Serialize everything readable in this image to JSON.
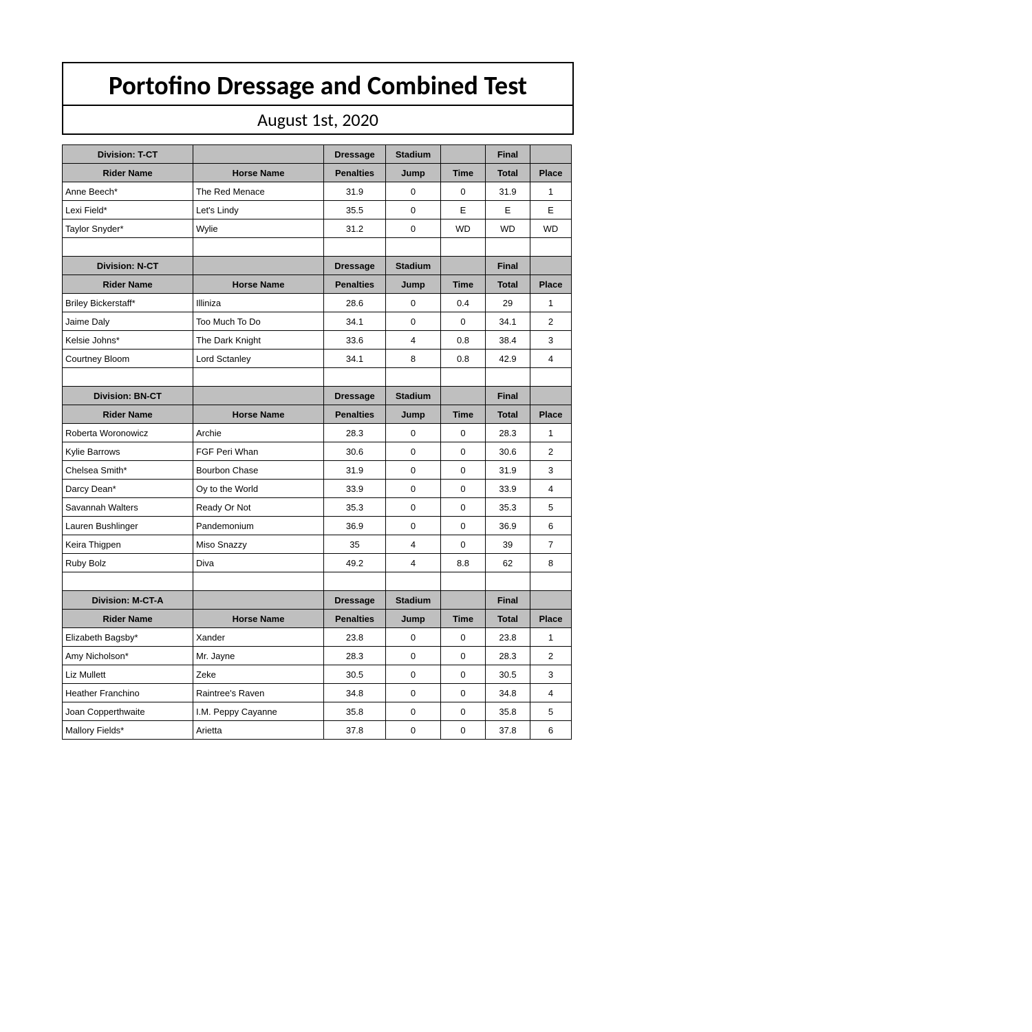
{
  "title": {
    "main": "Portofino Dressage and Combined Test",
    "date": "August 1st, 2020"
  },
  "columns": {
    "rider": "Rider Name",
    "horse": "Horse Name",
    "dressage_top": "Dressage",
    "dressage": "Penalties",
    "stadium_top": "Stadium",
    "jump": "Jump",
    "time": "Time",
    "final_top": "Final",
    "total": "Total",
    "place": "Place"
  },
  "divisions": [
    {
      "name": "Division: T-CT",
      "rows": [
        {
          "rider": "Anne Beech*",
          "horse": "The Red Menace",
          "dressage": "31.9",
          "jump": "0",
          "time": "0",
          "total": "31.9",
          "place": "1"
        },
        {
          "rider": "Lexi Field*",
          "horse": "Let's Lindy",
          "dressage": "35.5",
          "jump": "0",
          "time": "E",
          "total": "E",
          "place": "E"
        },
        {
          "rider": "Taylor Snyder*",
          "horse": "Wylie",
          "dressage": "31.2",
          "jump": "0",
          "time": "WD",
          "total": "WD",
          "place": "WD"
        }
      ]
    },
    {
      "name": "Division: N-CT",
      "rows": [
        {
          "rider": "Briley Bickerstaff*",
          "horse": "Illiniza",
          "dressage": "28.6",
          "jump": "0",
          "time": "0.4",
          "total": "29",
          "place": "1"
        },
        {
          "rider": "Jaime Daly",
          "horse": "Too Much To Do",
          "dressage": "34.1",
          "jump": "0",
          "time": "0",
          "total": "34.1",
          "place": "2"
        },
        {
          "rider": "Kelsie Johns*",
          "horse": "The Dark Knight",
          "dressage": "33.6",
          "jump": "4",
          "time": "0.8",
          "total": "38.4",
          "place": "3"
        },
        {
          "rider": "Courtney Bloom",
          "horse": "Lord Sctanley",
          "dressage": "34.1",
          "jump": "8",
          "time": "0.8",
          "total": "42.9",
          "place": "4"
        }
      ]
    },
    {
      "name": "Division: BN-CT",
      "rows": [
        {
          "rider": "Roberta Woronowicz",
          "horse": "Archie",
          "dressage": "28.3",
          "jump": "0",
          "time": "0",
          "total": "28.3",
          "place": "1"
        },
        {
          "rider": "Kylie  Barrows",
          "horse": "FGF Peri Whan",
          "dressage": "30.6",
          "jump": "0",
          "time": "0",
          "total": "30.6",
          "place": "2"
        },
        {
          "rider": "Chelsea Smith*",
          "horse": "Bourbon Chase",
          "dressage": "31.9",
          "jump": "0",
          "time": "0",
          "total": "31.9",
          "place": "3"
        },
        {
          "rider": "Darcy Dean*",
          "horse": "Oy to the World",
          "dressage": "33.9",
          "jump": "0",
          "time": "0",
          "total": "33.9",
          "place": "4"
        },
        {
          "rider": "Savannah Walters",
          "horse": "Ready Or Not",
          "dressage": "35.3",
          "jump": "0",
          "time": "0",
          "total": "35.3",
          "place": "5"
        },
        {
          "rider": "Lauren  Bushlinger",
          "horse": "Pandemonium",
          "dressage": "36.9",
          "jump": "0",
          "time": "0",
          "total": "36.9",
          "place": "6"
        },
        {
          "rider": "Keira Thigpen",
          "horse": "Miso Snazzy",
          "dressage": "35",
          "jump": "4",
          "time": "0",
          "total": "39",
          "place": "7"
        },
        {
          "rider": "Ruby Bolz",
          "horse": "Diva",
          "dressage": "49.2",
          "jump": "4",
          "time": "8.8",
          "total": "62",
          "place": "8"
        }
      ]
    },
    {
      "name": "Division: M-CT-A",
      "rows": [
        {
          "rider": "Elizabeth Bagsby*",
          "horse": "Xander",
          "dressage": "23.8",
          "jump": "0",
          "time": "0",
          "total": "23.8",
          "place": "1"
        },
        {
          "rider": "Amy Nicholson*",
          "horse": "Mr. Jayne",
          "dressage": "28.3",
          "jump": "0",
          "time": "0",
          "total": "28.3",
          "place": "2"
        },
        {
          "rider": "Liz Mullett",
          "horse": "Zeke",
          "dressage": "30.5",
          "jump": "0",
          "time": "0",
          "total": "30.5",
          "place": "3"
        },
        {
          "rider": "Heather Franchino",
          "horse": "Raintree's Raven",
          "dressage": "34.8",
          "jump": "0",
          "time": "0",
          "total": "34.8",
          "place": "4"
        },
        {
          "rider": "Joan Copperthwaite",
          "horse": "I.M. Peppy Cayanne",
          "dressage": "35.8",
          "jump": "0",
          "time": "0",
          "total": "35.8",
          "place": "5"
        },
        {
          "rider": "Mallory Fields*",
          "horse": "Arietta",
          "dressage": "37.8",
          "jump": "0",
          "time": "0",
          "total": "37.8",
          "place": "6"
        }
      ]
    }
  ],
  "colors": {
    "header_bg": "#bfbfbf",
    "border": "#000000",
    "page_bg": "#ffffff",
    "text": "#000000"
  },
  "fonts": {
    "title_family": "Calibri",
    "title_size_pt": 28,
    "date_size_pt": 20,
    "body_family": "Arial",
    "body_size_pt": 10
  }
}
